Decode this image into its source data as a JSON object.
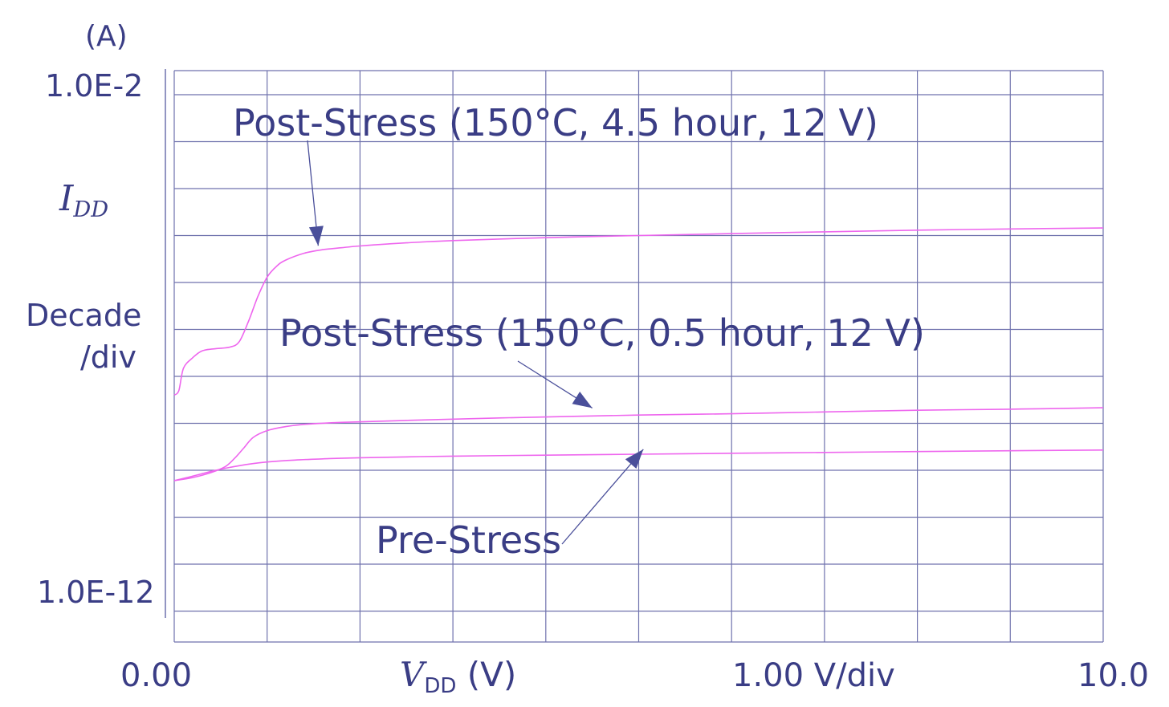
{
  "colors": {
    "text": "#3a3d85",
    "grid": "#6f72ad",
    "curve": "#ee66ee",
    "arrow": "#4a4f9a"
  },
  "chart_data": {
    "type": "line",
    "y_scale": "log",
    "y_unit_label": "(A)",
    "y_top_label": "1.0E-2",
    "y_bottom_label": "1.0E-12",
    "y_label": "I",
    "y_label_sub": "DD",
    "y_div_line1": "Decade",
    "y_div_line2": "/div",
    "x_start_label": "0.00",
    "x_label": "V",
    "x_label_sub": "DD",
    "x_label_unit": " (V)",
    "x_div_label": "1.00 V/div",
    "x_end_label": "10.0",
    "xlim": [
      0,
      10
    ],
    "ylim": [
      1e-12,
      0.01
    ],
    "grid": true,
    "series": [
      {
        "name": "Post-Stress (150°C, 4.5 hour, 12 V)",
        "x": [
          0,
          0.05,
          0.1,
          0.2,
          0.3,
          0.45,
          0.6,
          0.7,
          0.8,
          0.9,
          1.0,
          1.1,
          1.2,
          1.4,
          1.6,
          1.8,
          2.0,
          2.5,
          3.0,
          4.0,
          5.0,
          6.0,
          7.0,
          8.0,
          9.0,
          10.0
        ],
        "y": [
          4e-09,
          5e-09,
          1.5e-08,
          2.5e-08,
          3.5e-08,
          3.9e-08,
          4.2e-08,
          5.5e-08,
          1.5e-07,
          5e-07,
          1.3e-06,
          2.2e-06,
          3e-06,
          4.2e-06,
          5e-06,
          5.5e-06,
          6e-06,
          7e-06,
          7.8e-06,
          9e-06,
          1e-05,
          1.1e-05,
          1.2e-05,
          1.3e-05,
          1.38e-05,
          1.45e-05
        ]
      },
      {
        "name": "Post-Stress (150°C, 0.5 hour, 12 V)",
        "x": [
          0,
          0.2,
          0.4,
          0.55,
          0.65,
          0.75,
          0.85,
          1.0,
          1.2,
          1.4,
          1.8,
          2.5,
          3.5,
          5.0,
          6.0,
          7.0,
          8.0,
          9.0,
          10.0
        ],
        "y": [
          6e-11,
          7e-11,
          9e-11,
          1.2e-10,
          1.8e-10,
          3e-10,
          5e-10,
          7e-10,
          8.5e-10,
          9.5e-10,
          1.05e-09,
          1.15e-09,
          1.3e-09,
          1.5e-09,
          1.6e-09,
          1.75e-09,
          1.9e-09,
          2e-09,
          2.15e-09
        ]
      },
      {
        "name": "Pre-Stress",
        "x": [
          0,
          0.2,
          0.4,
          0.6,
          0.8,
          1.0,
          1.3,
          1.6,
          2.0,
          3.0,
          4.0,
          5.0,
          6.0,
          7.0,
          8.0,
          9.0,
          10.0
        ],
        "y": [
          6e-11,
          7.5e-11,
          9.5e-11,
          1.15e-10,
          1.35e-10,
          1.5e-10,
          1.65e-10,
          1.75e-10,
          1.85e-10,
          2e-10,
          2.1e-10,
          2.2e-10,
          2.3e-10,
          2.4e-10,
          2.5e-10,
          2.6e-10,
          2.7e-10
        ]
      }
    ],
    "annotations": [
      {
        "text": "Post-Stress (150°C, 4.5 hour, 12 V)",
        "target": "Post-Stress (150°C, 4.5 hour, 12 V)"
      },
      {
        "text": "Post-Stress (150°C, 0.5 hour, 12 V)",
        "target": "Post-Stress (150°C, 0.5 hour, 12 V)"
      },
      {
        "text": "Pre-Stress",
        "target": "Pre-Stress"
      }
    ]
  }
}
